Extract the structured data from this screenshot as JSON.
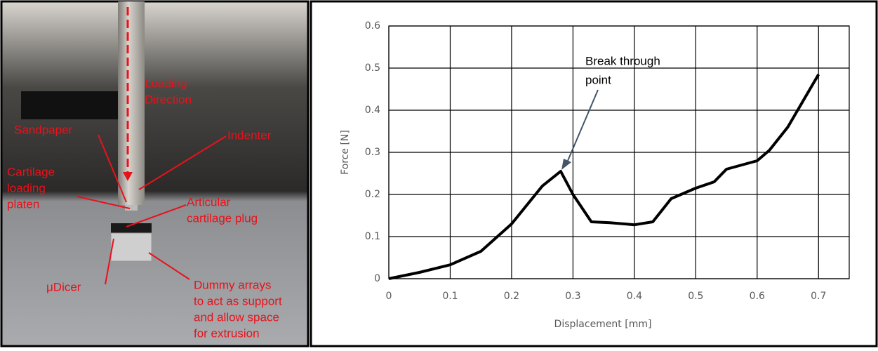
{
  "photo": {
    "labels": [
      {
        "lines": [
          "Loading",
          "Direction"
        ]
      },
      {
        "lines": [
          "Sandpaper"
        ]
      },
      {
        "lines": [
          "Indenter"
        ]
      },
      {
        "lines": [
          "Cartilage",
          "loading",
          "platen"
        ]
      },
      {
        "lines": [
          "Articular",
          "cartilage plug"
        ]
      },
      {
        "lines": [
          "μDicer"
        ]
      },
      {
        "lines": [
          "Dummy arrays",
          "to act as support",
          "and allow space",
          "for extrusion"
        ]
      }
    ]
  },
  "chart_data": {
    "type": "line",
    "x_label": "Displacement [mm]",
    "y_label": "Force [N]",
    "annotation": [
      "Break through",
      "point"
    ],
    "x": [
      0,
      0.05,
      0.1,
      0.15,
      0.2,
      0.25,
      0.28,
      0.3,
      0.33,
      0.36,
      0.4,
      0.43,
      0.46,
      0.5,
      0.53,
      0.55,
      0.6,
      0.62,
      0.65,
      0.7
    ],
    "series": [
      {
        "color": "#000000",
        "values": [
          0,
          0.015,
          0.033,
          0.065,
          0.13,
          0.22,
          0.255,
          0.2,
          0.135,
          0.133,
          0.128,
          0.135,
          0.19,
          0.215,
          0.23,
          0.26,
          0.28,
          0.305,
          0.36,
          0.485
        ]
      }
    ],
    "xlim": [
      0,
      0.75
    ],
    "xticks": [
      0,
      0.1,
      0.2,
      0.3,
      0.4,
      0.5,
      0.6,
      0.7
    ],
    "ylim": [
      0,
      0.6
    ],
    "yticks": [
      0,
      0.1,
      0.2,
      0.3,
      0.4,
      0.5,
      0.6
    ],
    "grid": true
  }
}
